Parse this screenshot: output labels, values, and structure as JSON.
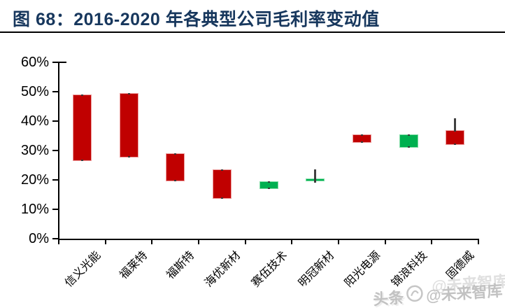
{
  "figure": {
    "title": "图 68：2016-2020 年各典型公司毛利率变动值"
  },
  "watermark": {
    "prefix": "头条",
    "handle": "@未来智库",
    "logo": "toutiao-logo-icon"
  },
  "chart_data": {
    "type": "candlestick",
    "title": "2016-2020 年各典型公司毛利率变动值",
    "xlabel": "",
    "ylabel": "",
    "ylim": [
      0,
      60
    ],
    "y_tick_step": 10,
    "y_tick_labels": [
      "0%",
      "10%",
      "20%",
      "30%",
      "40%",
      "50%",
      "60%"
    ],
    "grid": false,
    "legend": "none",
    "categories": [
      "信义光能",
      "福莱特",
      "福斯特",
      "海优新材",
      "赛伍技术",
      "明冠新材",
      "阳光电源",
      "锦浪科技",
      "固德威"
    ],
    "series": [
      {
        "name": "信义光能",
        "body_low": 26.5,
        "body_high": 49.0,
        "low": 26.5,
        "high": 49.0,
        "color": "red"
      },
      {
        "name": "福莱特",
        "body_low": 27.5,
        "body_high": 49.5,
        "low": 27.5,
        "high": 49.5,
        "color": "red"
      },
      {
        "name": "福斯特",
        "body_low": 19.5,
        "body_high": 29.0,
        "low": 19.5,
        "high": 29.0,
        "color": "red"
      },
      {
        "name": "海优新材",
        "body_low": 13.5,
        "body_high": 23.5,
        "low": 13.5,
        "high": 23.5,
        "color": "red"
      },
      {
        "name": "赛伍技术",
        "body_low": 17.0,
        "body_high": 19.5,
        "low": 17.0,
        "high": 19.5,
        "color": "green"
      },
      {
        "name": "明冠新材",
        "body_low": 19.5,
        "body_high": 20.5,
        "low": 19.5,
        "high": 23.5,
        "color": "green"
      },
      {
        "name": "阳光电源",
        "body_low": 32.5,
        "body_high": 35.5,
        "low": 32.5,
        "high": 35.5,
        "color": "red"
      },
      {
        "name": "锦浪科技",
        "body_low": 31.0,
        "body_high": 35.5,
        "low": 31.0,
        "high": 35.5,
        "color": "green"
      },
      {
        "name": "固德威",
        "body_low": 32.0,
        "body_high": 37.0,
        "low": 32.0,
        "high": 41.0,
        "color": "red"
      }
    ],
    "colors": {
      "red": "#C00000",
      "green": "#00B050",
      "red_border": "#ED9A9A",
      "green_border": "#7FDCA4",
      "whisker": "#404040",
      "axis": "#000000",
      "title": "#17375D"
    }
  }
}
